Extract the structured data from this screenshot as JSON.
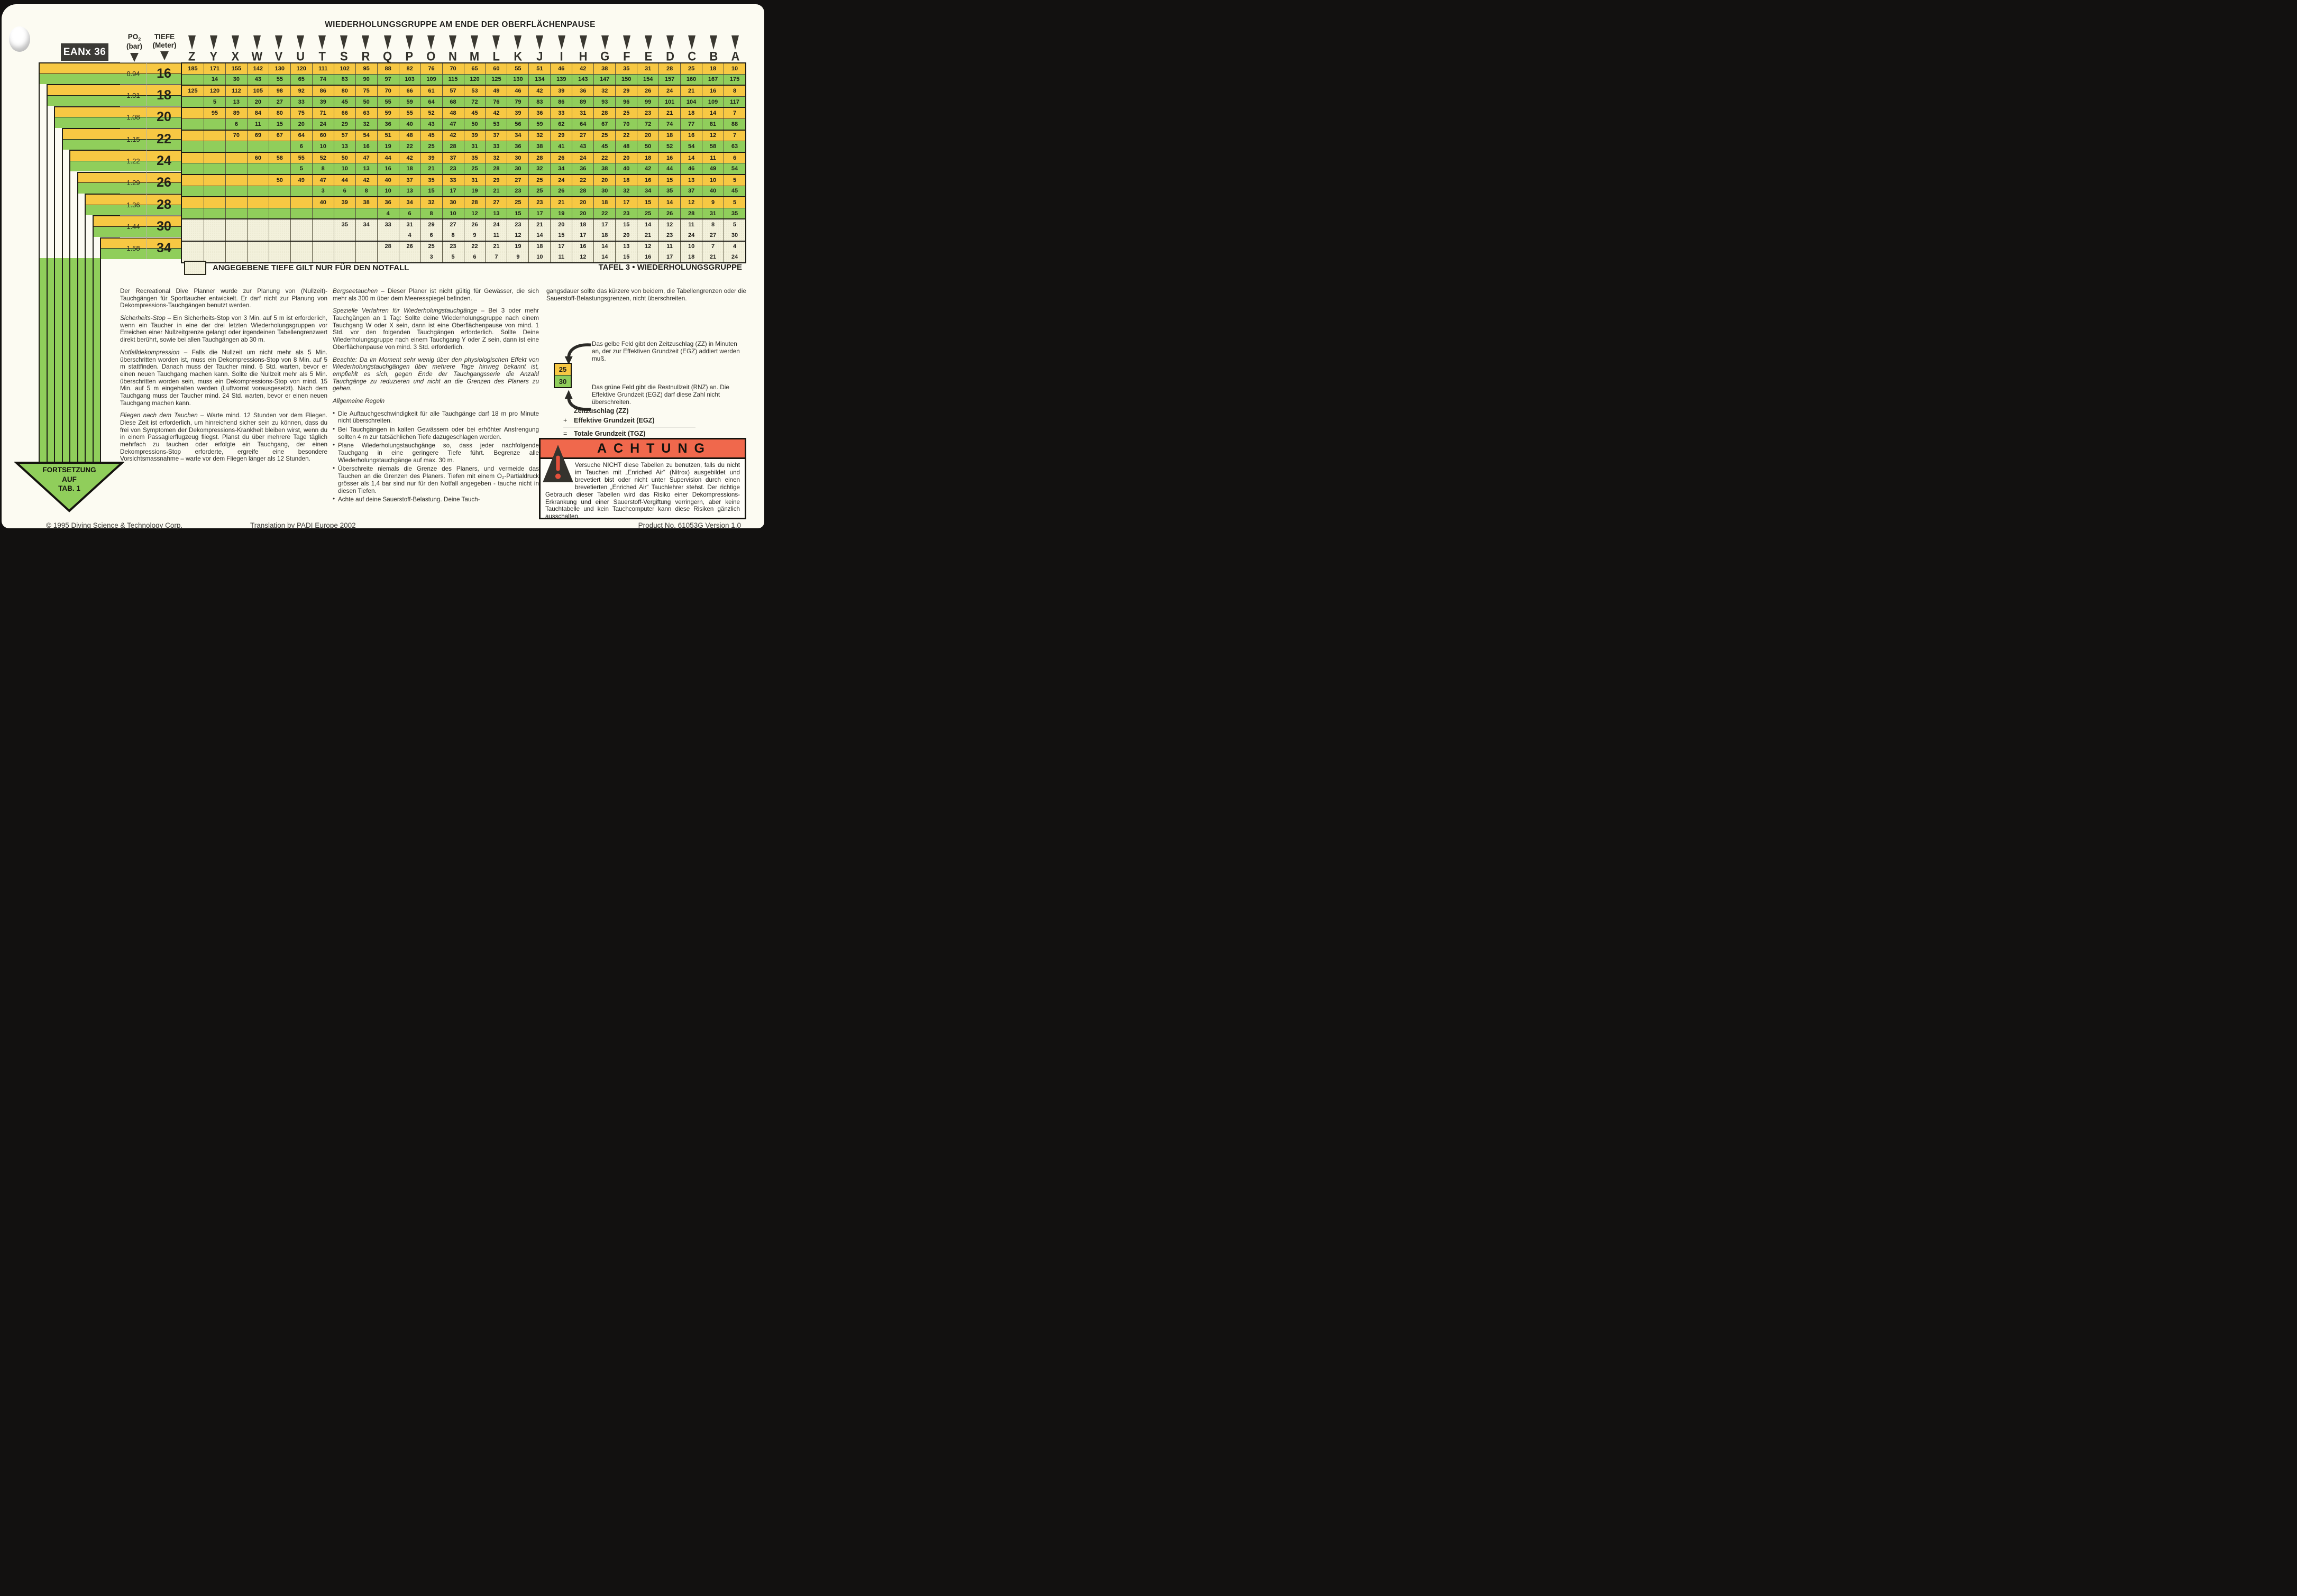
{
  "colors": {
    "yellow": "#F7C843",
    "green": "#90CE5B",
    "notfall": "#F3F1DC",
    "warning_red": "#F0684C"
  },
  "badge": "EANx 36",
  "header": {
    "title": "WIEDERHOLUNGSGRUPPE AM ENDE DER OBERFLÄCHENPAUSE",
    "gas_label": "PO",
    "gas_sub": "2",
    "gas_unit": "(bar)",
    "depth_label": "TIEFE",
    "depth_unit": "(Meter)"
  },
  "table": {
    "groups": [
      "Z",
      "Y",
      "X",
      "W",
      "V",
      "U",
      "T",
      "S",
      "R",
      "Q",
      "P",
      "O",
      "N",
      "M",
      "L",
      "K",
      "J",
      "I",
      "H",
      "G",
      "F",
      "E",
      "D",
      "C",
      "B",
      "A"
    ],
    "rows": [
      {
        "po2": "0.94",
        "depth": "16",
        "notfall": false,
        "zz": [
          185,
          171,
          155,
          142,
          130,
          120,
          111,
          102,
          95,
          88,
          82,
          76,
          70,
          65,
          60,
          55,
          51,
          46,
          42,
          38,
          35,
          31,
          28,
          25,
          18,
          10
        ],
        "rnz": [
          null,
          14,
          30,
          43,
          55,
          65,
          74,
          83,
          90,
          97,
          103,
          109,
          115,
          120,
          125,
          130,
          134,
          139,
          143,
          147,
          150,
          154,
          157,
          160,
          167,
          175
        ]
      },
      {
        "po2": "1.01",
        "depth": "18",
        "notfall": false,
        "zz": [
          125,
          120,
          112,
          105,
          98,
          92,
          86,
          80,
          75,
          70,
          66,
          61,
          57,
          53,
          49,
          46,
          42,
          39,
          36,
          32,
          29,
          26,
          24,
          21,
          16,
          8
        ],
        "rnz": [
          null,
          5,
          13,
          20,
          27,
          33,
          39,
          45,
          50,
          55,
          59,
          64,
          68,
          72,
          76,
          79,
          83,
          86,
          89,
          93,
          96,
          99,
          101,
          104,
          109,
          117
        ]
      },
      {
        "po2": "1.08",
        "depth": "20",
        "notfall": false,
        "zz": [
          null,
          95,
          89,
          84,
          80,
          75,
          71,
          66,
          63,
          59,
          55,
          52,
          48,
          45,
          42,
          39,
          36,
          33,
          31,
          28,
          25,
          23,
          21,
          18,
          14,
          7
        ],
        "rnz": [
          null,
          null,
          6,
          11,
          15,
          20,
          24,
          29,
          32,
          36,
          40,
          43,
          47,
          50,
          53,
          56,
          59,
          62,
          64,
          67,
          70,
          72,
          74,
          77,
          81,
          88
        ]
      },
      {
        "po2": "1.15",
        "depth": "22",
        "notfall": false,
        "zz": [
          null,
          null,
          70,
          69,
          67,
          64,
          60,
          57,
          54,
          51,
          48,
          45,
          42,
          39,
          37,
          34,
          32,
          29,
          27,
          25,
          22,
          20,
          18,
          16,
          12,
          7
        ],
        "rnz": [
          null,
          null,
          null,
          null,
          null,
          6,
          10,
          13,
          16,
          19,
          22,
          25,
          28,
          31,
          33,
          36,
          38,
          41,
          43,
          45,
          48,
          50,
          52,
          54,
          58,
          63
        ]
      },
      {
        "po2": "1.22",
        "depth": "24",
        "notfall": false,
        "zz": [
          null,
          null,
          null,
          60,
          58,
          55,
          52,
          50,
          47,
          44,
          42,
          39,
          37,
          35,
          32,
          30,
          28,
          26,
          24,
          22,
          20,
          18,
          16,
          14,
          11,
          6
        ],
        "rnz": [
          null,
          null,
          null,
          null,
          null,
          5,
          8,
          10,
          13,
          16,
          18,
          21,
          23,
          25,
          28,
          30,
          32,
          34,
          36,
          38,
          40,
          42,
          44,
          46,
          49,
          54
        ]
      },
      {
        "po2": "1.29",
        "depth": "26",
        "notfall": false,
        "zz": [
          null,
          null,
          null,
          null,
          50,
          49,
          47,
          44,
          42,
          40,
          37,
          35,
          33,
          31,
          29,
          27,
          25,
          24,
          22,
          20,
          18,
          16,
          15,
          13,
          10,
          5
        ],
        "rnz": [
          null,
          null,
          null,
          null,
          null,
          null,
          3,
          6,
          8,
          10,
          13,
          15,
          17,
          19,
          21,
          23,
          25,
          26,
          28,
          30,
          32,
          34,
          35,
          37,
          40,
          45
        ]
      },
      {
        "po2": "1.36",
        "depth": "28",
        "notfall": false,
        "zz": [
          null,
          null,
          null,
          null,
          null,
          null,
          40,
          39,
          38,
          36,
          34,
          32,
          30,
          28,
          27,
          25,
          23,
          21,
          20,
          18,
          17,
          15,
          14,
          12,
          9,
          5
        ],
        "rnz": [
          null,
          null,
          null,
          null,
          null,
          null,
          null,
          null,
          null,
          4,
          6,
          8,
          10,
          12,
          13,
          15,
          17,
          19,
          20,
          22,
          23,
          25,
          26,
          28,
          31,
          35
        ]
      },
      {
        "po2": "1.44",
        "depth": "30",
        "notfall": true,
        "zz": [
          null,
          null,
          null,
          null,
          null,
          null,
          null,
          35,
          34,
          33,
          31,
          29,
          27,
          26,
          24,
          23,
          21,
          20,
          18,
          17,
          15,
          14,
          12,
          11,
          8,
          5
        ],
        "rnz": [
          null,
          null,
          null,
          null,
          null,
          null,
          null,
          null,
          null,
          null,
          4,
          6,
          8,
          9,
          11,
          12,
          14,
          15,
          17,
          18,
          20,
          21,
          23,
          24,
          27,
          30
        ]
      },
      {
        "po2": "1.58",
        "depth": "34",
        "notfall": true,
        "zz": [
          null,
          null,
          null,
          null,
          null,
          null,
          null,
          null,
          null,
          28,
          26,
          25,
          23,
          22,
          21,
          19,
          18,
          17,
          16,
          14,
          13,
          12,
          11,
          10,
          7,
          4
        ],
        "rnz": [
          null,
          null,
          null,
          null,
          null,
          null,
          null,
          null,
          null,
          null,
          null,
          3,
          5,
          6,
          7,
          9,
          10,
          11,
          12,
          14,
          15,
          16,
          17,
          18,
          21,
          24
        ]
      }
    ]
  },
  "note": "ANGEGEBENE TIEFE GILT NUR FÜR DEN NOTFALL",
  "tafel_caption": "TAFEL 3 • WIEDERHOLUNGSGRUPPE",
  "arrow_lines": [
    "FORTSETZUNG",
    "AUF",
    "TAB. 1"
  ],
  "text_columns": {
    "left": [
      {
        "lead": "",
        "text": "Der Recreational Dive Planner wurde zur Planung von (Nullzeit)-Tauchgängen für Sporttaucher entwickelt. Er darf nicht zur Planung von Dekompressions-Tauchgängen benutzt werden."
      },
      {
        "lead": "Sicherheits-Stop",
        "text": " – Ein Sicherheits-Stop von 3 Min. auf 5 m ist erforderlich, wenn ein Taucher in eine der drei letzten Wiederholungsgruppen vor Erreichen einer Nullzeitgrenze gelangt oder irgendeinen Tabellengrenzwert direkt berührt, sowie bei allen Tauchgängen ab 30 m."
      },
      {
        "lead": "Notfalldekompression",
        "text": " – Falls die Nullzeit um nicht mehr als 5 Min. überschritten worden ist, muss ein Dekompressions-Stop von 8 Min. auf 5 m stattfinden. Danach muss der Taucher mind. 6 Std. warten, bevor er einen neuen Tauchgang machen kann. Sollte die Nullzeit mehr als 5 Min. überschritten worden sein, muss ein Dekompressions-Stop von mind. 15 Min. auf 5 m eingehalten werden (Luftvorrat vorausgesetzt). Nach dem Tauchgang muss der Taucher mind. 24 Std. warten, bevor er einen neuen Tauchgang machen kann."
      },
      {
        "lead": "Fliegen nach dem Tauchen",
        "text": " – Warte mind. 12 Stunden vor dem Fliegen. Diese Zeit ist erforderlich, um hinreichend sicher sein zu können, dass du frei von Symptomen der Dekompressions-Krankheit bleiben wirst, wenn du in einem Passagierflugzeug fliegst. Planst du über mehrere Tage täglich mehrfach zu tauchen oder erfolgte ein Tauchgang, der einen Dekompressions-Stop erforderte, ergreife eine besondere Vorsichtsmassnahme – warte vor dem Fliegen länger als 12 Stunden."
      }
    ],
    "middle": [
      {
        "lead": "Bergseetauchen",
        "text": " – Dieser Planer ist nicht gültig für Gewässer, die sich mehr als 300 m über dem Meeresspiegel befinden."
      },
      {
        "lead": "Spezielle Verfahren für Wiederholungstauchgänge",
        "text": " – Bei 3 oder mehr Tauchgängen an 1 Tag: Sollte deine Wiederholungsgruppe nach einem Tauchgang W oder X sein, dann ist eine Oberflächenpause von mind. 1 Std. vor den folgenden Tauchgängen erforderlich. Sollte Deine Wiederholungsgruppe nach einem Tauchgang Y oder Z sein, dann ist eine Oberflächenpause von mind. 3 Std. erforderlich."
      },
      {
        "lead": "Beachte:",
        "text": " Da im Moment sehr wenig über den physiologischen Effekt von Wiederholungstauchgängen über mehrere Tage hinweg bekannt ist, empfiehlt es sich, gegen Ende der Tauchgangsserie die Anzahl Tauchgänge zu reduzieren und nicht an die Grenzen des Planers zu gehen.",
        "italic": true
      }
    ],
    "middle_heading": "Allgemeine Regeln",
    "middle_bullets": [
      "Die Auftauchgeschwindigkeit für alle Tauchgänge darf 18 m pro Minute nicht überschreiten.",
      "Bei Tauchgängen in kalten Gewässern oder bei erhöhter Anstrengung sollten 4 m zur tatsächlichen Tiefe dazugeschlagen werden.",
      "Plane Wiederholungstauchgänge so, dass jeder nachfolgende Tauchgang in eine geringere Tiefe führt. Begrenze alle Wiederholungstauchgänge auf max. 30 m.",
      "Überschreite niemals die Grenze des Planers, und vermeide das Tauchen an die Grenzen des Planers. Tiefen mit einem O₂-Partialdruck grösser als 1,4 bar sind nur für den Notfall angegeben - tauche nicht in diesen Tiefen.",
      "Achte auf deine Sauerstoff-Belastung. Deine Tauch-"
    ],
    "right_cont": "gangsdauer sollte das kürzere von beidem, die Tabellengrenzen oder die Sauerstoff-Belastungsgrenzen, nicht überschreiten."
  },
  "legend": {
    "swatch_zz": "25",
    "swatch_rnz": "30",
    "yellow_text": "Das gelbe Feld gibt den Zeitzuschlag (ZZ) in Minuten an, der zur Effektiven Grundzeit (EGZ) addiert werden muß.",
    "green_text": "Das grüne Feld gibt die Restnullzeit (RNZ) an. Die Effektive Grundzeit (EGZ) darf diese Zahl nicht überschreiten."
  },
  "formula": {
    "line1": "Zeitzuschlag (ZZ)",
    "op1": "+",
    "line2": "Effektive Grundzeit (EGZ)",
    "op2": "=",
    "line3": "Totale Grundzeit (TGZ)"
  },
  "achtung": {
    "title": "ACHTUNG",
    "text": "Versuche NICHT diese Tabellen zu benutzen, falls du nicht im Tauchen mit „Enriched Air“ (Nitrox) ausgebildet und brevetiert bist oder nicht unter Supervision durch einen brevetierten „Enriched Air“ Tauchlehrer stehst. Der richtige Gebrauch dieser Tabellen wird das Risiko einer Dekompressions-Erkrankung und einer Sauerstoff-Vergiftung verringern, aber keine Tauchtabelle und kein Tauchcomputer kann diese Risiken gänzlich ausschalten."
  },
  "footer": {
    "copyright": "© 1995 Diving Science & Technology Corp.",
    "translation": "Translation by PADI Europe 2002",
    "product": "Product No. 61053G  Version 1.0"
  }
}
